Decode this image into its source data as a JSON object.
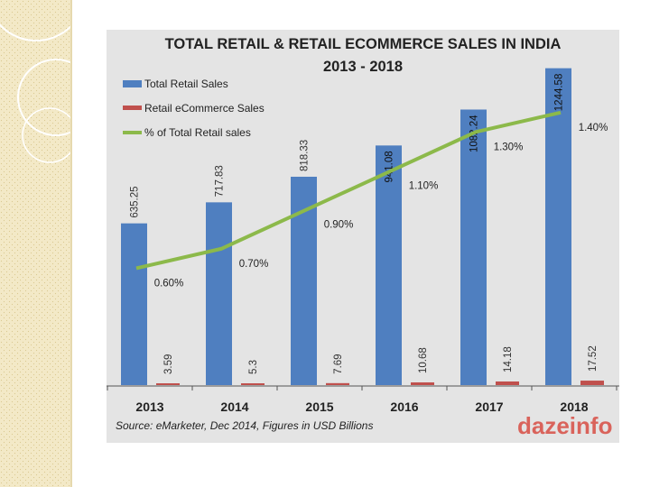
{
  "chart_data": {
    "type": "bar",
    "title": "TOTAL RETAIL & RETAIL ECOMMERCE SALES IN INDIA",
    "subtitle": "2013 - 2018",
    "categories": [
      "2013",
      "2014",
      "2015",
      "2016",
      "2017",
      "2018"
    ],
    "series": [
      {
        "name": "Total Retail Sales",
        "kind": "bar",
        "color": "#4f7fc0",
        "values": [
          635.25,
          717.83,
          818.33,
          941.08,
          1082.24,
          1244.58
        ],
        "labels": [
          "635.25",
          "717.83",
          "818.33",
          "941.08",
          "1082.24",
          "1244.58"
        ]
      },
      {
        "name": "Retail eCommerce Sales",
        "kind": "bar",
        "color": "#c0504d",
        "values": [
          3.59,
          5.3,
          7.69,
          10.68,
          14.18,
          17.52
        ],
        "labels": [
          "3.59",
          "5.3",
          "7.69",
          "10.68",
          "14.18",
          "17.52"
        ]
      },
      {
        "name": "% of Total Retail sales",
        "kind": "line",
        "color": "#8cb94a",
        "values": [
          0.6,
          0.7,
          0.9,
          1.1,
          1.3,
          1.4
        ],
        "labels": [
          "0.60%",
          "0.70%",
          "0.90%",
          "1.10%",
          "1.30%",
          "1.40%"
        ]
      }
    ],
    "ylim_bars": [
      0,
      1300
    ],
    "ylim_line": [
      0,
      1.7
    ],
    "grid": false,
    "legend": "top-left",
    "source": "Source: eMarketer, Dec 2014, Figures in USD Billions",
    "watermark": "dazeinfo"
  }
}
